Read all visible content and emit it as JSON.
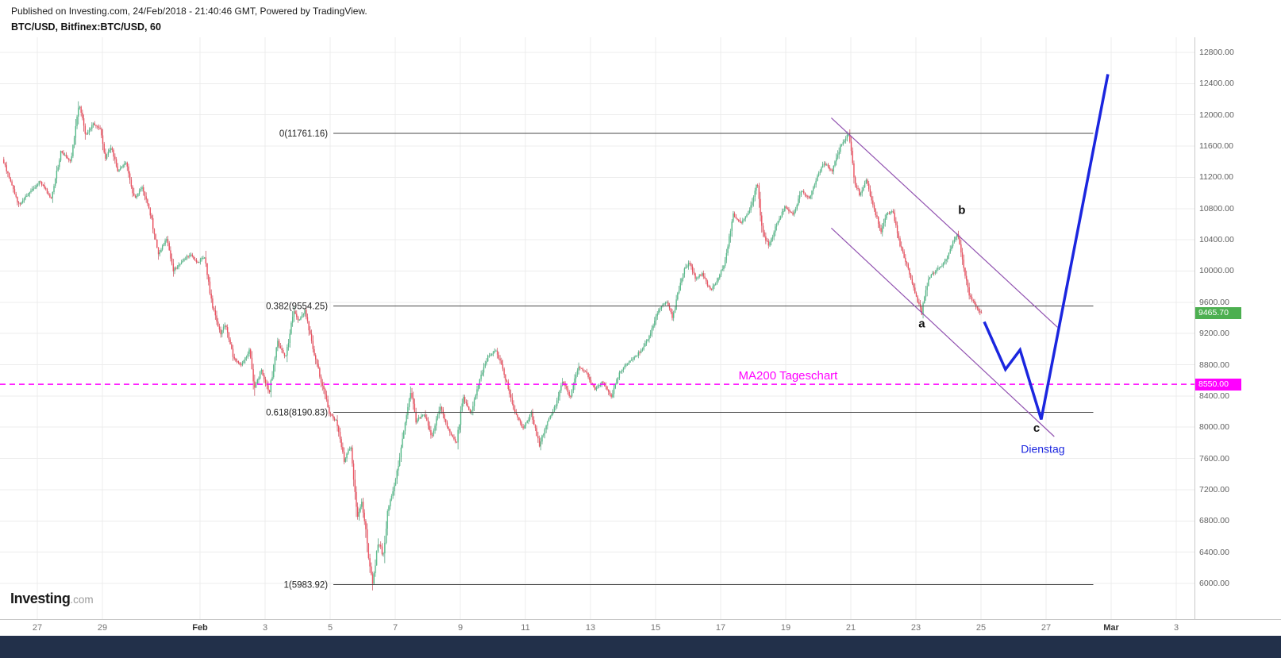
{
  "header": {
    "published_line": "Published on Investing.com, 24/Feb/2018 - 21:40:46 GMT, Powered by TradingView.",
    "symbol_line": "BTC/USD, Bitfinex:BTC/USD, 60"
  },
  "logo": {
    "brand": "Investing",
    "suffix": ".com"
  },
  "colors": {
    "up": "#53b987",
    "up_wick": "#3f9670",
    "down": "#eb4d5c",
    "down_wick": "#c2414f",
    "grid": "#ececec",
    "fib_line": "#4a4a4a",
    "fib_text": "#222222",
    "ma200": "#ff00ff",
    "channel": "#9152b0",
    "projection": "#1b26df",
    "wave_text": "#111111",
    "last_price_badge": "#4caf50",
    "axis_text": "#5f5f5f",
    "bottom_bar": "#22304a"
  },
  "chart_data": {
    "type": "candlestick",
    "symbol": "BTC/USD",
    "exchange": "Bitfinex",
    "interval_minutes": 60,
    "last_price": 9465.7,
    "y_axis": {
      "min": 5530,
      "max": 12990,
      "ticks": [
        12800,
        12400,
        12000,
        11600,
        11200,
        10800,
        10400,
        10000,
        9600,
        9200,
        8800,
        8400,
        8000,
        7600,
        7200,
        6800,
        6400,
        6000
      ]
    },
    "x_axis": {
      "ticks": [
        {
          "label": "27",
          "t": 0,
          "bold": false
        },
        {
          "label": "29",
          "t": 2,
          "bold": false
        },
        {
          "label": "Feb",
          "t": 5,
          "bold": true
        },
        {
          "label": "3",
          "t": 7,
          "bold": false
        },
        {
          "label": "5",
          "t": 9,
          "bold": false
        },
        {
          "label": "7",
          "t": 11,
          "bold": false
        },
        {
          "label": "9",
          "t": 13,
          "bold": false
        },
        {
          "label": "11",
          "t": 15,
          "bold": false
        },
        {
          "label": "13",
          "t": 17,
          "bold": false
        },
        {
          "label": "15",
          "t": 19,
          "bold": false
        },
        {
          "label": "17",
          "t": 21,
          "bold": false
        },
        {
          "label": "19",
          "t": 23,
          "bold": false
        },
        {
          "label": "21",
          "t": 25,
          "bold": false
        },
        {
          "label": "23",
          "t": 27,
          "bold": false
        },
        {
          "label": "25",
          "t": 29,
          "bold": false
        },
        {
          "label": "27",
          "t": 31,
          "bold": false
        },
        {
          "label": "Mar",
          "t": 33,
          "bold": true
        },
        {
          "label": "3",
          "t": 35,
          "bold": false
        }
      ]
    },
    "t_range": [
      -1.05,
      29.02
    ],
    "price_path_anchors": [
      [
        -1.05,
        11430
      ],
      [
        -0.55,
        10850
      ],
      [
        0.1,
        11150
      ],
      [
        0.45,
        10930
      ],
      [
        0.75,
        11540
      ],
      [
        1.05,
        11390
      ],
      [
        1.3,
        12150
      ],
      [
        1.5,
        11740
      ],
      [
        1.75,
        11890
      ],
      [
        1.95,
        11820
      ],
      [
        2.1,
        11440
      ],
      [
        2.3,
        11590
      ],
      [
        2.5,
        11280
      ],
      [
        2.75,
        11390
      ],
      [
        3.0,
        10930
      ],
      [
        3.25,
        11080
      ],
      [
        3.5,
        10720
      ],
      [
        3.75,
        10210
      ],
      [
        4.0,
        10420
      ],
      [
        4.2,
        10010
      ],
      [
        4.45,
        10110
      ],
      [
        4.7,
        10215
      ],
      [
        4.95,
        10110
      ],
      [
        5.15,
        10190
      ],
      [
        5.4,
        9550
      ],
      [
        5.65,
        9200
      ],
      [
        5.8,
        9320
      ],
      [
        6.05,
        8890
      ],
      [
        6.3,
        8790
      ],
      [
        6.55,
        8990
      ],
      [
        6.7,
        8485
      ],
      [
        6.9,
        8740
      ],
      [
        7.15,
        8435
      ],
      [
        7.4,
        9095
      ],
      [
        7.65,
        8890
      ],
      [
        7.9,
        9500
      ],
      [
        8.05,
        9350
      ],
      [
        8.25,
        9500
      ],
      [
        8.5,
        8990
      ],
      [
        8.75,
        8585
      ],
      [
        9.0,
        8180
      ],
      [
        9.2,
        8080
      ],
      [
        9.45,
        7570
      ],
      [
        9.65,
        7770
      ],
      [
        9.85,
        6860
      ],
      [
        10.0,
        7060
      ],
      [
        10.2,
        6350
      ],
      [
        10.33,
        5985
      ],
      [
        10.5,
        6550
      ],
      [
        10.65,
        6350
      ],
      [
        10.8,
        6960
      ],
      [
        11.05,
        7365
      ],
      [
        11.3,
        7975
      ],
      [
        11.5,
        8485
      ],
      [
        11.65,
        8080
      ],
      [
        11.9,
        8180
      ],
      [
        12.15,
        7875
      ],
      [
        12.4,
        8280
      ],
      [
        12.65,
        7975
      ],
      [
        12.9,
        7770
      ],
      [
        13.1,
        8385
      ],
      [
        13.35,
        8180
      ],
      [
        13.6,
        8585
      ],
      [
        13.85,
        8890
      ],
      [
        14.1,
        8990
      ],
      [
        14.3,
        8790
      ],
      [
        14.5,
        8485
      ],
      [
        14.7,
        8180
      ],
      [
        14.95,
        7975
      ],
      [
        15.2,
        8180
      ],
      [
        15.45,
        7770
      ],
      [
        15.7,
        8080
      ],
      [
        15.95,
        8280
      ],
      [
        16.15,
        8585
      ],
      [
        16.4,
        8385
      ],
      [
        16.65,
        8790
      ],
      [
        16.9,
        8690
      ],
      [
        17.15,
        8485
      ],
      [
        17.4,
        8585
      ],
      [
        17.65,
        8385
      ],
      [
        17.9,
        8690
      ],
      [
        18.1,
        8790
      ],
      [
        18.35,
        8890
      ],
      [
        18.6,
        8990
      ],
      [
        18.85,
        9195
      ],
      [
        19.1,
        9500
      ],
      [
        19.35,
        9605
      ],
      [
        19.55,
        9400
      ],
      [
        19.7,
        9705
      ],
      [
        19.9,
        10010
      ],
      [
        20.05,
        10110
      ],
      [
        20.25,
        9910
      ],
      [
        20.45,
        9960
      ],
      [
        20.7,
        9755
      ],
      [
        20.9,
        9860
      ],
      [
        21.15,
        10110
      ],
      [
        21.4,
        10720
      ],
      [
        21.65,
        10620
      ],
      [
        21.9,
        10775
      ],
      [
        22.15,
        11130
      ],
      [
        22.3,
        10520
      ],
      [
        22.5,
        10315
      ],
      [
        22.75,
        10620
      ],
      [
        23.0,
        10825
      ],
      [
        23.25,
        10720
      ],
      [
        23.5,
        11030
      ],
      [
        23.75,
        10925
      ],
      [
        24.0,
        11230
      ],
      [
        24.2,
        11385
      ],
      [
        24.45,
        11280
      ],
      [
        24.7,
        11590
      ],
      [
        24.95,
        11760
      ],
      [
        25.15,
        11130
      ],
      [
        25.3,
        10975
      ],
      [
        25.5,
        11180
      ],
      [
        25.7,
        10825
      ],
      [
        25.95,
        10520
      ],
      [
        26.1,
        10720
      ],
      [
        26.3,
        10775
      ],
      [
        26.55,
        10315
      ],
      [
        26.8,
        10010
      ],
      [
        27.0,
        9705
      ],
      [
        27.2,
        9460
      ],
      [
        27.4,
        9910
      ],
      [
        27.65,
        10010
      ],
      [
        27.9,
        10110
      ],
      [
        28.1,
        10315
      ],
      [
        28.3,
        10470
      ],
      [
        28.5,
        10010
      ],
      [
        28.65,
        9705
      ],
      [
        28.85,
        9550
      ],
      [
        29.02,
        9465.7
      ]
    ],
    "fibonacci": {
      "span_t": [
        9.1,
        32.45
      ],
      "levels": [
        {
          "label": "0(11761.16)",
          "price": 11761.16
        },
        {
          "label": "0.382(9554.25)",
          "price": 9554.25
        },
        {
          "label": "0.618(8190.83)",
          "price": 8190.83
        },
        {
          "label": "1(5983.92)",
          "price": 5983.92
        }
      ]
    },
    "ma200": {
      "label": "MA200 Tageschart",
      "price": 8550.0,
      "label_t": 21.55
    },
    "channel": {
      "upper": [
        [
          24.4,
          11960
        ],
        [
          31.35,
          9280
        ]
      ],
      "lower": [
        [
          24.4,
          10550
        ],
        [
          31.25,
          7880
        ]
      ]
    },
    "projection": {
      "points": [
        [
          29.1,
          9350
        ],
        [
          29.75,
          8740
        ],
        [
          30.2,
          8990
        ],
        [
          30.85,
          8100
        ],
        [
          32.9,
          12520
        ]
      ]
    },
    "wave_labels": [
      {
        "text": "b",
        "t": 28.41,
        "price": 10780,
        "style": "wave"
      },
      {
        "text": "a",
        "t": 27.18,
        "price": 9330,
        "style": "wave"
      },
      {
        "text": "c",
        "t": 30.71,
        "price": 7990,
        "style": "wave"
      },
      {
        "text": "Dienstag",
        "t": 30.9,
        "price": 7720,
        "style": "note"
      }
    ]
  }
}
